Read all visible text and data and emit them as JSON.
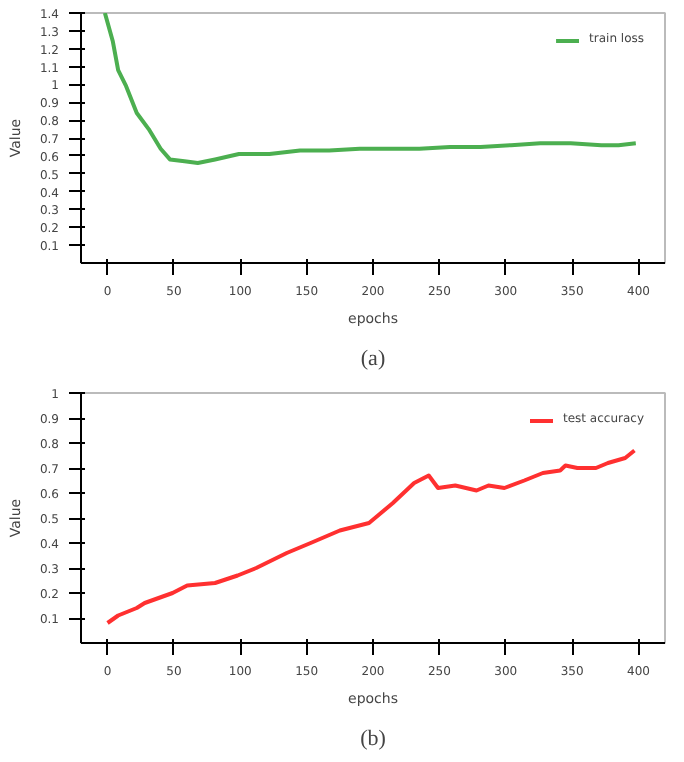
{
  "chart_data": [
    {
      "type": "line",
      "xlabel": "epochs",
      "ylabel": "Value",
      "annotations": [
        "(a)"
      ],
      "legend": "top right",
      "grid": false,
      "xlim": [
        -20,
        420
      ],
      "xticks": [
        0,
        50,
        100,
        150,
        200,
        250,
        300,
        350,
        400
      ],
      "ylim": [
        0,
        1.4
      ],
      "yticks": [
        0.1,
        0.2,
        0.3,
        0.4,
        0.5,
        0.6,
        0.7,
        0.8,
        0.9,
        1.0,
        1.1,
        1.2,
        1.3,
        1.4
      ],
      "series": [
        {
          "name": "train loss",
          "color": "#4caf50",
          "x": [
            -2,
            4,
            8,
            14,
            22,
            31,
            40,
            47,
            58,
            68,
            81,
            99,
            122,
            145,
            167,
            190,
            204,
            235,
            258,
            281,
            304,
            326,
            349,
            372,
            385,
            398
          ],
          "values": [
            1.4,
            1.24,
            1.08,
            0.99,
            0.84,
            0.75,
            0.64,
            0.58,
            0.57,
            0.56,
            0.58,
            0.61,
            0.61,
            0.63,
            0.63,
            0.64,
            0.64,
            0.64,
            0.65,
            0.65,
            0.66,
            0.67,
            0.67,
            0.66,
            0.66,
            0.67
          ]
        }
      ]
    },
    {
      "type": "line",
      "xlabel": "epochs",
      "ylabel": "Value",
      "annotations": [
        "(b)"
      ],
      "legend": "top right",
      "grid": false,
      "xlim": [
        -20,
        420
      ],
      "xticks": [
        0,
        50,
        100,
        150,
        200,
        250,
        300,
        350,
        400
      ],
      "ylim": [
        0,
        1.0
      ],
      "yticks": [
        0.1,
        0.2,
        0.3,
        0.4,
        0.5,
        0.6,
        0.7,
        0.8,
        0.9,
        1.0
      ],
      "series": [
        {
          "name": "test accuracy",
          "color": "#ff3030",
          "x": [
            0,
            8,
            22,
            28,
            49,
            60,
            81,
            98,
            112,
            135,
            153,
            175,
            197,
            206,
            215,
            231,
            242,
            249,
            262,
            278,
            287,
            299,
            314,
            328,
            341,
            345,
            354,
            368,
            377,
            390,
            397
          ],
          "values": [
            0.08,
            0.11,
            0.14,
            0.16,
            0.2,
            0.23,
            0.24,
            0.27,
            0.3,
            0.36,
            0.4,
            0.45,
            0.48,
            0.52,
            0.56,
            0.64,
            0.67,
            0.62,
            0.63,
            0.61,
            0.63,
            0.62,
            0.65,
            0.68,
            0.69,
            0.71,
            0.7,
            0.7,
            0.72,
            0.74,
            0.77
          ]
        }
      ]
    }
  ]
}
